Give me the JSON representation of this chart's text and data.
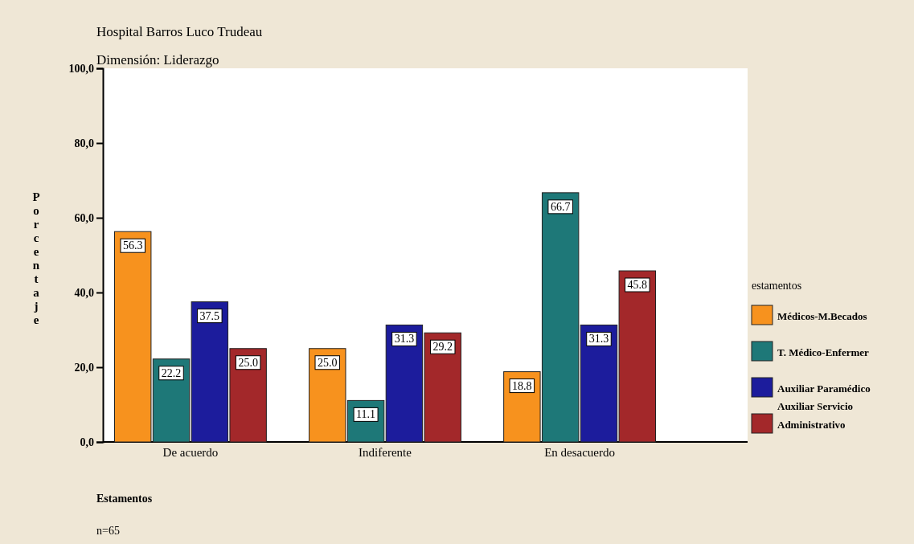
{
  "chart_data": {
    "type": "bar",
    "title": "Hospital Barros Luco Trudeau",
    "subtitle": "Dimensión: Liderazgo",
    "xlabel": "Estamentos",
    "ylabel": "Porcentaje",
    "legend_title": "estamentos",
    "categories": [
      "De acuerdo",
      "Indiferente",
      "En desacuerdo"
    ],
    "series": [
      {
        "name": "Médicos-M.Becados",
        "color": "#f7921e",
        "values": [
          56.3,
          25.0,
          18.8
        ],
        "value_labels": [
          "56.3",
          "25.0",
          "18.8"
        ]
      },
      {
        "name": "T. Médico-Enfermer",
        "color": "#1e7878",
        "values": [
          22.2,
          11.1,
          66.7
        ],
        "value_labels": [
          "22.2",
          "11.1",
          "66.7"
        ]
      },
      {
        "name": "Auxiliar Paramédico\nAuxiliar Servicio",
        "color": "#1c1c9c",
        "values": [
          37.5,
          31.3,
          31.3
        ],
        "value_labels": [
          "37.5",
          "31.3",
          "31.3"
        ]
      },
      {
        "name": "Administrativo",
        "color": "#a3282a",
        "values": [
          25.0,
          29.2,
          45.8
        ],
        "value_labels": [
          "25.0",
          "29.2",
          "45.8"
        ]
      }
    ],
    "ylim": [
      0,
      100
    ],
    "yticks": [
      {
        "value": 0,
        "label": "0,0"
      },
      {
        "value": 20,
        "label": "20,0"
      },
      {
        "value": 40,
        "label": "40,0"
      },
      {
        "value": 60,
        "label": "60,0"
      },
      {
        "value": 80,
        "label": "80,0"
      },
      {
        "value": 100,
        "label": "100,0"
      }
    ],
    "legend": "right",
    "grid": false,
    "annotations": [
      "n=65"
    ]
  }
}
